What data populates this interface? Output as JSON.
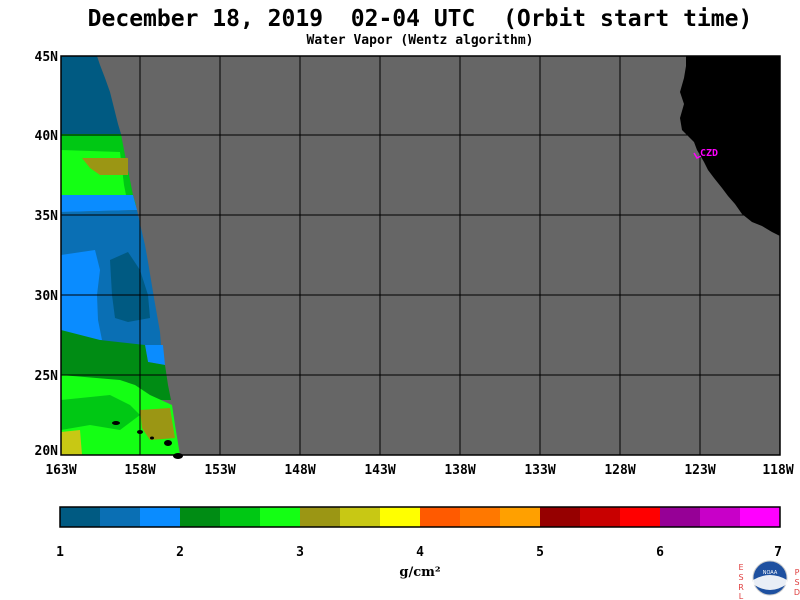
{
  "title": "December 18, 2019  02-04 UTC  (Orbit start time)",
  "subtitle": "Water Vapor (Wentz algorithm)",
  "map": {
    "lat_labels": [
      "45N",
      "40N",
      "35N",
      "30N",
      "25N",
      "20N"
    ],
    "lon_labels": [
      "163W",
      "158W",
      "153W",
      "148W",
      "143W",
      "138W",
      "133W",
      "128W",
      "123W",
      "118W"
    ],
    "station_label": "CZD",
    "colors": {
      "no_data": "#666666",
      "land": "#000000",
      "grid": "#000000",
      "station": "#ff00ff"
    }
  },
  "colorbar": {
    "colors": [
      "#005a82",
      "#0a6fb4",
      "#0a8cff",
      "#008c14",
      "#00c814",
      "#14ff14",
      "#9b9614",
      "#c8c814",
      "#ffff00",
      "#ff5a00",
      "#ff7800",
      "#ffa000",
      "#960000",
      "#c80000",
      "#ff0000",
      "#960096",
      "#c800c8",
      "#ff00ff"
    ],
    "tick_labels": [
      "1",
      "2",
      "3",
      "4",
      "5",
      "6",
      "7"
    ],
    "units": "g/cm²"
  },
  "logo": {
    "left_letters": [
      "E",
      "S",
      "R",
      "L"
    ],
    "right_letters": [
      "P",
      "S",
      "D"
    ],
    "text": "NOAA"
  }
}
